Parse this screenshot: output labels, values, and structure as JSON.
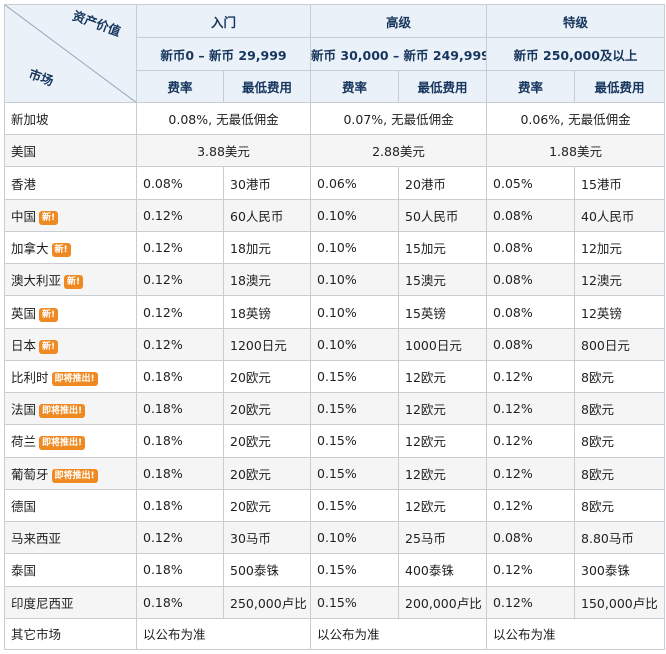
{
  "header": {
    "corner_top": "资产价值",
    "corner_bottom": "市场",
    "tiers": [
      {
        "name": "入门",
        "range": "新币0 – 新币 29,999"
      },
      {
        "name": "高级",
        "range": "新币 30,000 – 新币 249,999"
      },
      {
        "name": "特级",
        "range": "新币 250,000及以上"
      }
    ],
    "col_rate": "费率",
    "col_min": "最低费用"
  },
  "merged_rows": [
    {
      "market": "新加坡",
      "cells": [
        "0.08%, 无最低佣金",
        "0.07%, 无最低佣金",
        "0.06%, 无最低佣金"
      ]
    },
    {
      "market": "美国",
      "cells": [
        "3.88美元",
        "2.88美元",
        "1.88美元"
      ]
    }
  ],
  "rows": [
    {
      "market": "香港",
      "badge": "",
      "vals": [
        "0.08%",
        "30港币",
        "0.06%",
        "20港币",
        "0.05%",
        "15港币"
      ]
    },
    {
      "market": "中国",
      "badge": "新!",
      "vals": [
        "0.12%",
        "60人民币",
        "0.10%",
        "50人民币",
        "0.08%",
        "40人民币"
      ]
    },
    {
      "market": "加拿大",
      "badge": "新!",
      "vals": [
        "0.12%",
        "18加元",
        "0.10%",
        "15加元",
        "0.08%",
        "12加元"
      ]
    },
    {
      "market": "澳大利亚",
      "badge": "新!",
      "vals": [
        "0.12%",
        "18澳元",
        "0.10%",
        "15澳元",
        "0.08%",
        "12澳元"
      ]
    },
    {
      "market": "英国",
      "badge": "新!",
      "vals": [
        "0.12%",
        "18英镑",
        "0.10%",
        "15英镑",
        "0.08%",
        "12英镑"
      ]
    },
    {
      "market": "日本",
      "badge": "新!",
      "vals": [
        "0.12%",
        "1200日元",
        "0.10%",
        "1000日元",
        "0.08%",
        "800日元"
      ]
    },
    {
      "market": "比利时",
      "badge": "即将推出!",
      "vals": [
        "0.18%",
        "20欧元",
        "0.15%",
        "12欧元",
        "0.12%",
        "8欧元"
      ]
    },
    {
      "market": "法国",
      "badge": "即将推出!",
      "vals": [
        "0.18%",
        "20欧元",
        "0.15%",
        "12欧元",
        "0.12%",
        "8欧元"
      ]
    },
    {
      "market": "荷兰",
      "badge": "即将推出!",
      "vals": [
        "0.18%",
        "20欧元",
        "0.15%",
        "12欧元",
        "0.12%",
        "8欧元"
      ]
    },
    {
      "market": "葡萄牙",
      "badge": "即将推出!",
      "vals": [
        "0.18%",
        "20欧元",
        "0.15%",
        "12欧元",
        "0.12%",
        "8欧元"
      ]
    },
    {
      "market": "德国",
      "badge": "",
      "vals": [
        "0.18%",
        "20欧元",
        "0.15%",
        "12欧元",
        "0.12%",
        "8欧元"
      ]
    },
    {
      "market": "马来西亚",
      "badge": "",
      "vals": [
        "0.12%",
        "30马币",
        "0.10%",
        "25马币",
        "0.08%",
        "8.80马币"
      ]
    },
    {
      "market": "泰国",
      "badge": "",
      "vals": [
        "0.18%",
        "500泰铢",
        "0.15%",
        "400泰铢",
        "0.12%",
        "300泰铢"
      ]
    },
    {
      "market": "印度尼西亚",
      "badge": "",
      "vals": [
        "0.18%",
        "250,000卢比",
        "0.15%",
        "200,000卢比",
        "0.12%",
        "150,000卢比"
      ]
    }
  ],
  "footer_row": {
    "market": "其它市场",
    "cells": [
      "以公布为准",
      "以公布为准",
      "以公布为准"
    ]
  }
}
